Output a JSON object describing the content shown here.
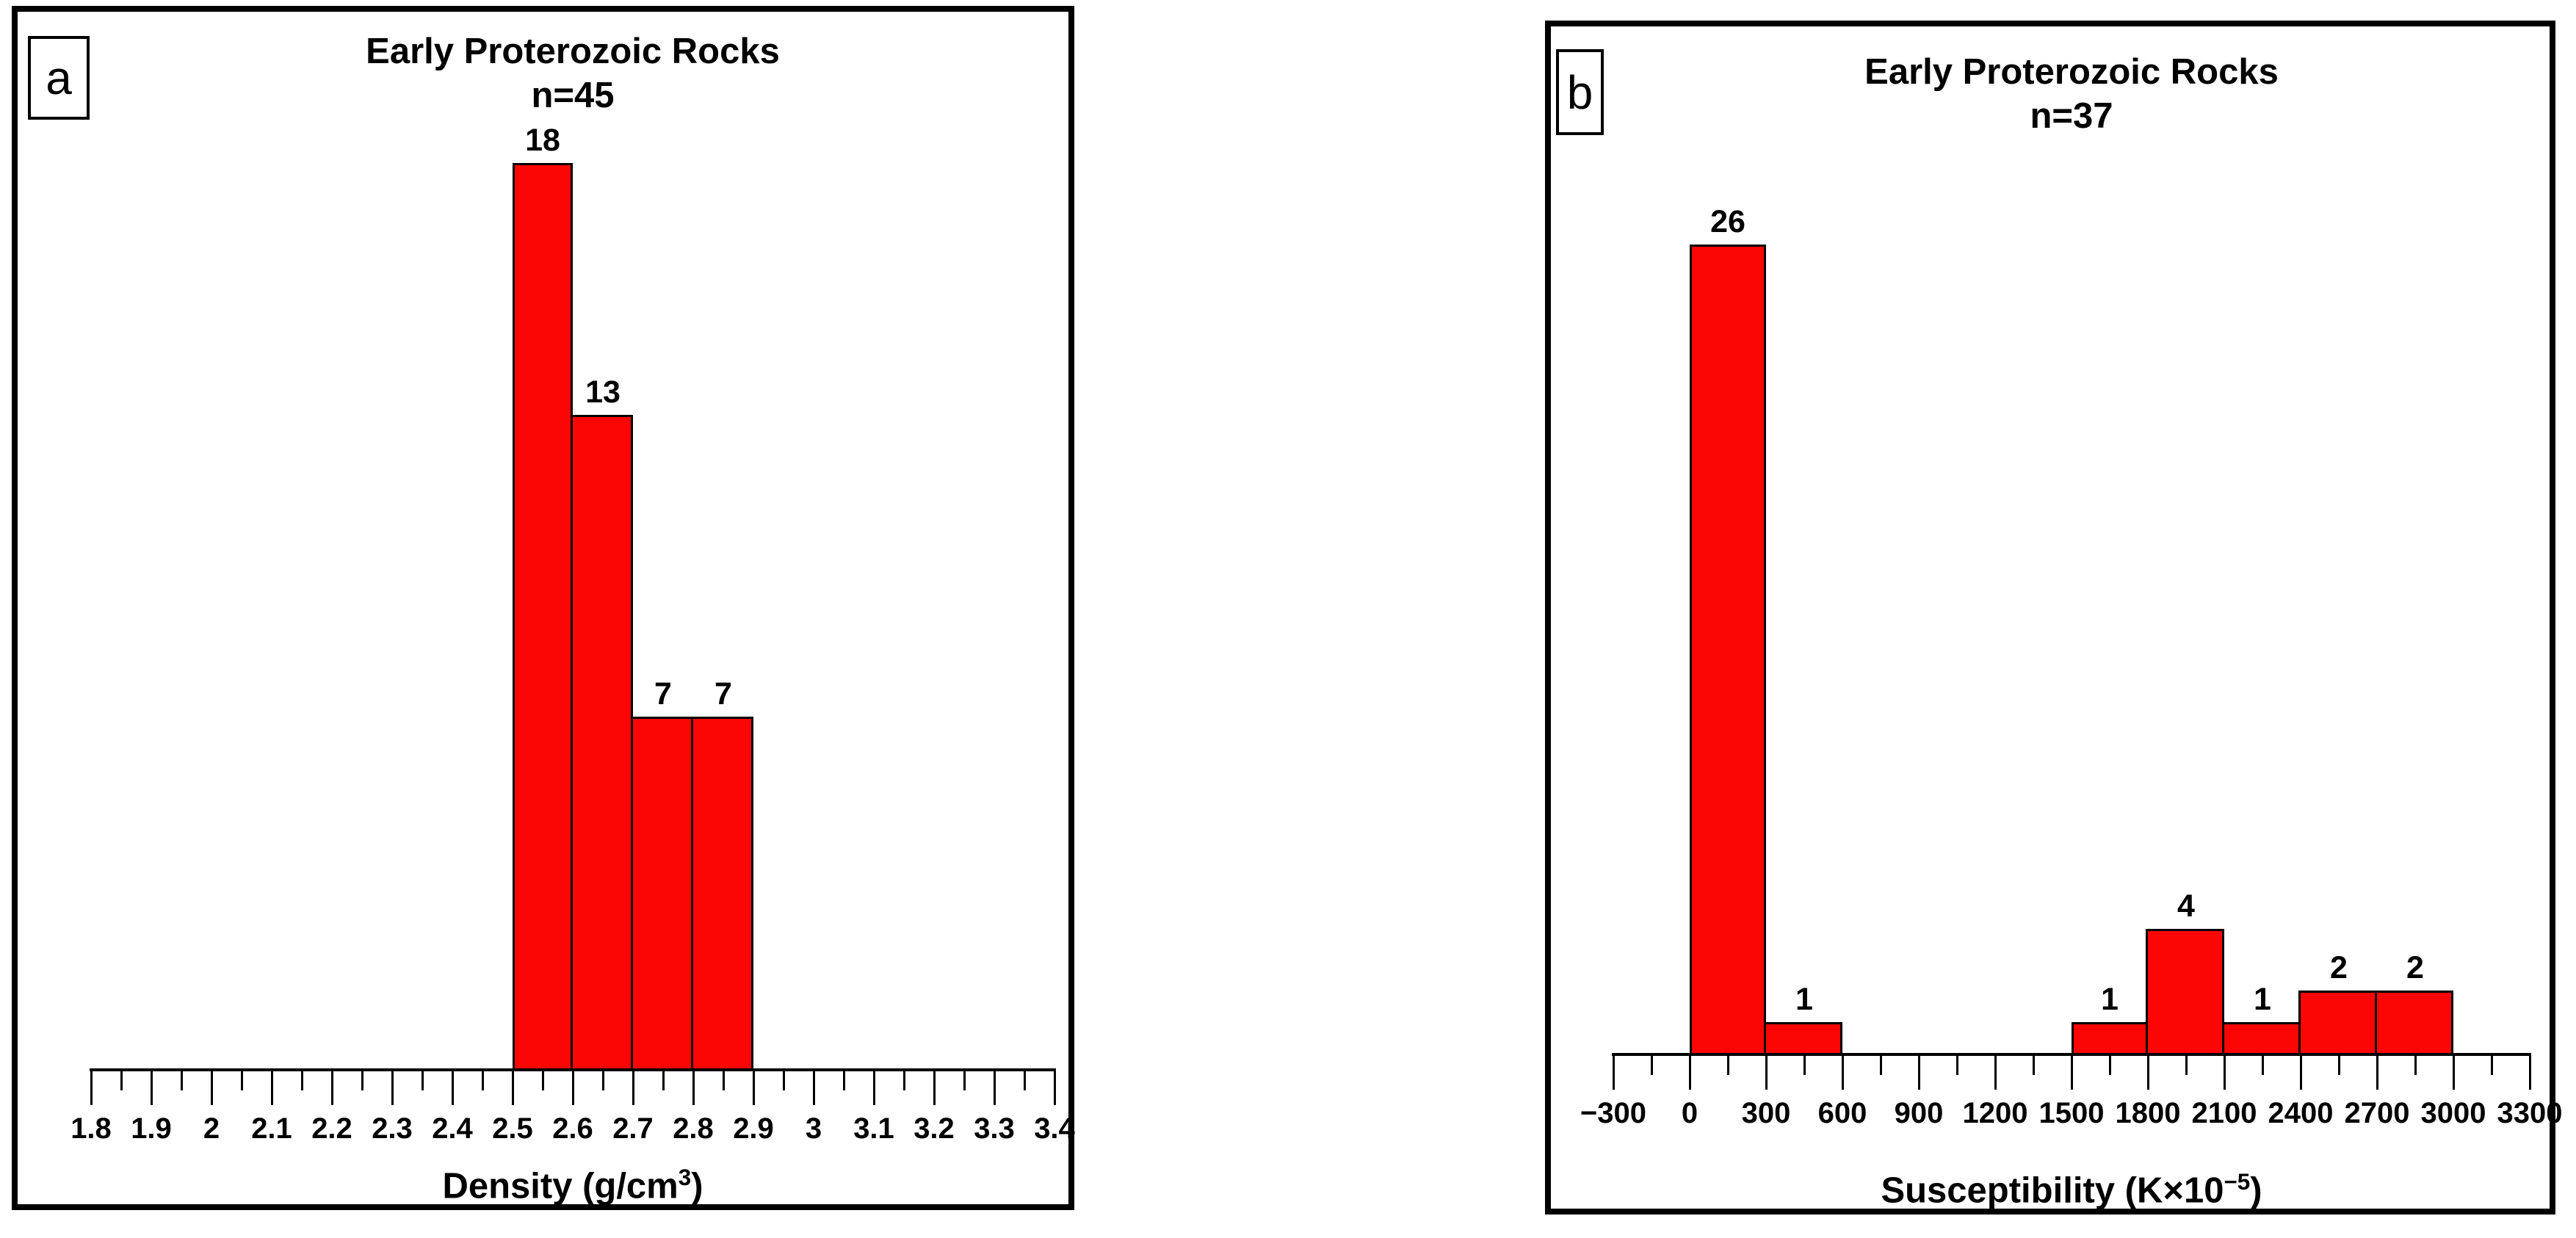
{
  "figure": {
    "background_color": "#FFFFFF",
    "panel_border_color": "#000000",
    "text_color": "#000000"
  },
  "chart_data": [
    {
      "type": "bar",
      "chart_kind": "histogram",
      "panel_label": "a",
      "title": "Early Proterozoic Rocks",
      "subtitle": "n=45",
      "n": 45,
      "xlabel_prefix": "Density (g/cm",
      "xlabel_sup": "3",
      "xlabel_suffix": ")",
      "xlim": [
        1.8,
        3.4
      ],
      "xtick_step": 0.1,
      "minor_tick_step": 0.05,
      "xtick_labels": [
        "1.8",
        "1.9",
        "2",
        "2.1",
        "2.2",
        "2.3",
        "2.4",
        "2.5",
        "2.6",
        "2.7",
        "2.8",
        "2.9",
        "3",
        "3.1",
        "3.2",
        "3.3",
        "3.4"
      ],
      "bin_edges": [
        2.5,
        2.6,
        2.7,
        2.8,
        2.9
      ],
      "counts": [
        18,
        13,
        7,
        7
      ],
      "bar_color": "#FB0505",
      "grid": false,
      "legend": false
    },
    {
      "type": "bar",
      "chart_kind": "histogram",
      "panel_label": "b",
      "title": "Early Proterozoic Rocks",
      "subtitle": "n=37",
      "n": 37,
      "xlabel_prefix": "Susceptibility (K×10",
      "xlabel_sup": "−5",
      "xlabel_suffix": ")",
      "xlim": [
        -300,
        3300
      ],
      "xtick_step": 300,
      "minor_tick_step": 150,
      "xtick_labels": [
        "−300",
        "0",
        "300",
        "600",
        "900",
        "1200",
        "1500",
        "1800",
        "2100",
        "2400",
        "2700",
        "3000",
        "3300"
      ],
      "bin_edges": [
        -300,
        0,
        300,
        600,
        900,
        1200,
        1500,
        1800,
        2100,
        2400,
        2700,
        3000,
        3300
      ],
      "counts": [
        0,
        26,
        1,
        0,
        0,
        0,
        1,
        4,
        1,
        2,
        2,
        0
      ],
      "bar_color": "#FB0505",
      "grid": false,
      "legend": false
    }
  ]
}
